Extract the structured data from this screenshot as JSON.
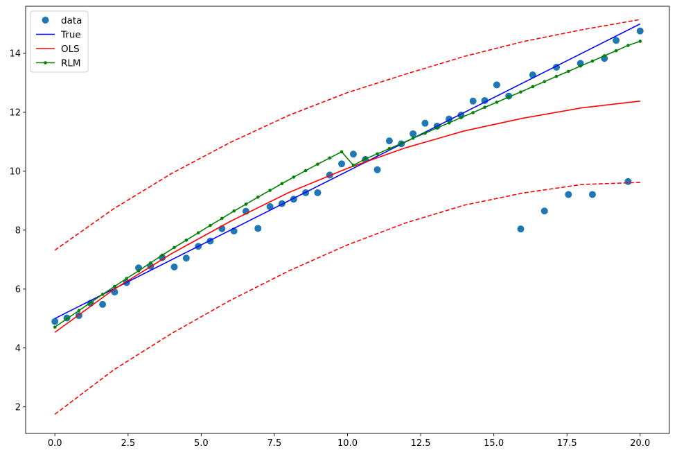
{
  "chart_data": {
    "type": "line",
    "title": "",
    "xlabel": "",
    "ylabel": "",
    "xlim": [
      -1.0,
      21.0
    ],
    "ylim": [
      1.1,
      15.6
    ],
    "xticks": [
      0,
      2.5,
      5,
      7.5,
      10,
      12.5,
      15,
      17.5,
      20
    ],
    "xtick_labels": [
      "0.0",
      "2.5",
      "5.0",
      "7.5",
      "10.0",
      "12.5",
      "15.0",
      "17.5",
      "20.0"
    ],
    "yticks": [
      2,
      4,
      6,
      8,
      10,
      12,
      14
    ],
    "ytick_labels": [
      "2",
      "4",
      "6",
      "8",
      "10",
      "12",
      "14"
    ],
    "grid": false,
    "legend_position": "top-left",
    "legend": [
      "data",
      "True",
      "OLS",
      "RLM"
    ],
    "colors": {
      "data": "#1f77b4",
      "True": "#0000ff",
      "OLS": "#ff0000",
      "RLM": "#008000"
    },
    "series": [
      {
        "name": "data",
        "style": "markers",
        "x": [
          0.0,
          0.41,
          0.82,
          1.22,
          1.63,
          2.04,
          2.45,
          2.86,
          3.27,
          3.67,
          4.08,
          4.49,
          4.9,
          5.31,
          5.71,
          6.12,
          6.53,
          6.94,
          7.35,
          7.76,
          8.16,
          8.57,
          8.98,
          9.39,
          9.8,
          10.2,
          10.61,
          11.02,
          11.43,
          11.84,
          12.24,
          12.65,
          13.06,
          13.47,
          13.88,
          14.29,
          14.69,
          15.1,
          15.51,
          15.92,
          16.33,
          16.73,
          17.14,
          17.55,
          17.96,
          18.37,
          18.78,
          19.18,
          19.59,
          20.0
        ],
        "y": [
          4.9,
          5.02,
          5.1,
          5.52,
          5.48,
          5.9,
          6.22,
          6.72,
          6.78,
          7.07,
          6.75,
          7.05,
          7.45,
          7.63,
          8.05,
          7.97,
          8.64,
          8.06,
          8.8,
          8.9,
          9.05,
          9.27,
          9.27,
          9.87,
          10.25,
          10.58,
          10.4,
          10.05,
          11.03,
          10.93,
          11.27,
          11.63,
          11.53,
          11.77,
          11.9,
          12.38,
          12.4,
          12.93,
          12.55,
          8.04,
          13.27,
          8.65,
          13.53,
          9.21,
          13.66,
          9.21,
          13.83,
          14.44,
          9.65,
          14.76
        ]
      },
      {
        "name": "True",
        "style": "line",
        "x": [
          0,
          20
        ],
        "y": [
          5.0,
          15.0
        ]
      },
      {
        "name": "OLS",
        "style": "line",
        "x": [
          0,
          2,
          4,
          6,
          8,
          10,
          12,
          14,
          16,
          18,
          20
        ],
        "y": [
          4.53,
          5.98,
          7.21,
          8.3,
          9.28,
          10.1,
          10.8,
          11.37,
          11.8,
          12.15,
          12.38
        ]
      },
      {
        "name": "OLS upper bound",
        "style": "dashed",
        "x": [
          0,
          2,
          4,
          6,
          8,
          10,
          12,
          14,
          16,
          18,
          20
        ],
        "y": [
          7.32,
          8.72,
          9.93,
          10.98,
          11.9,
          12.67,
          13.3,
          13.9,
          14.4,
          14.8,
          15.15
        ]
      },
      {
        "name": "OLS lower bound",
        "style": "dashed",
        "x": [
          0,
          2,
          4,
          6,
          8,
          10,
          12,
          14,
          16,
          18,
          20
        ],
        "y": [
          1.75,
          3.25,
          4.5,
          5.62,
          6.62,
          7.5,
          8.25,
          8.85,
          9.26,
          9.55,
          9.62
        ]
      },
      {
        "name": "RLM",
        "style": "line-markers",
        "x": [
          0.0,
          0.41,
          0.82,
          1.22,
          1.63,
          2.04,
          2.45,
          2.86,
          3.27,
          3.67,
          4.08,
          4.49,
          4.9,
          5.31,
          5.71,
          6.12,
          6.53,
          6.94,
          7.35,
          7.76,
          8.16,
          8.57,
          8.98,
          9.39,
          9.8,
          10.2,
          10.61,
          11.02,
          11.43,
          11.84,
          12.24,
          12.65,
          13.06,
          13.47,
          13.88,
          14.29,
          14.69,
          15.1,
          15.51,
          15.92,
          16.33,
          16.73,
          17.14,
          17.55,
          17.96,
          18.37,
          18.78,
          19.18,
          19.59,
          20.0
        ],
        "y": [
          4.71,
          4.99,
          5.27,
          5.54,
          5.82,
          6.09,
          6.36,
          6.62,
          6.89,
          7.15,
          7.41,
          7.66,
          7.91,
          8.16,
          8.4,
          8.65,
          8.88,
          9.12,
          9.35,
          9.58,
          9.8,
          10.02,
          10.24,
          10.45,
          10.66,
          10.2,
          10.42,
          10.59,
          10.77,
          10.94,
          11.12,
          11.29,
          11.47,
          11.64,
          11.82,
          11.99,
          12.17,
          12.34,
          12.52,
          12.69,
          12.87,
          13.04,
          13.22,
          13.39,
          13.57,
          13.74,
          13.92,
          14.09,
          14.27,
          14.41
        ]
      }
    ]
  }
}
